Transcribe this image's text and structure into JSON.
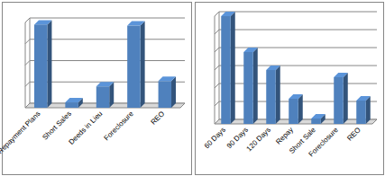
{
  "chart_data": [
    {
      "type": "bar",
      "categories": [
        "Repayment Plans",
        "Short Sales",
        "Deeds in Lieu",
        "Foreclosure",
        "REO"
      ],
      "values": [
        3.9,
        0.25,
        1.0,
        3.85,
        1.25
      ],
      "color": "#4f81bd",
      "ylim": [
        0,
        4
      ],
      "yticks": [
        0,
        1,
        2,
        3,
        4
      ],
      "grid": true,
      "tick_labels": "x"
    },
    {
      "type": "bar",
      "categories": [
        "60 Days",
        "90 Days",
        "120 Days",
        "Repay",
        "Short Sale",
        "Foreclosure",
        "REO"
      ],
      "values": [
        6.0,
        4.0,
        3.0,
        1.4,
        0.3,
        2.6,
        1.3
      ],
      "color": "#4f81bd",
      "ylim": [
        0,
        6
      ],
      "yticks": [
        0,
        1,
        2,
        3,
        4,
        5,
        6
      ],
      "grid": true,
      "tick_labels": "x"
    }
  ]
}
